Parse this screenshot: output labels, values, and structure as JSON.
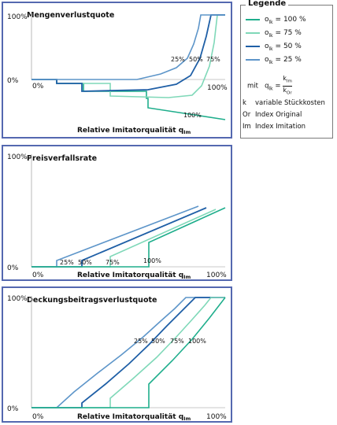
{
  "colors": {
    "c100": "#1fae8c",
    "c75": "#7fd8b8",
    "c50": "#1f5fa6",
    "c25": "#5d95c9",
    "frame": "#5468b0"
  },
  "legend": {
    "title": "Legende",
    "entries": [
      {
        "label": "o",
        "sub": "lk",
        "value": "=   100 %",
        "color": "#1fae8c"
      },
      {
        "label": "o",
        "sub": "lk",
        "value": "=     75 %",
        "color": "#7fd8b8"
      },
      {
        "label": "o",
        "sub": "lk",
        "value": "=     50 %",
        "color": "#1f5fa6"
      },
      {
        "label": "o",
        "sub": "lk",
        "value": "=     25 %",
        "color": "#5d95c9"
      }
    ],
    "formula_prefix": "mit",
    "formula_lhs": "q",
    "formula_lhs_sub": "lk",
    "formula_num": "k",
    "formula_num_sub": "Im",
    "formula_den": "k",
    "formula_den_sub": "Or",
    "abbreviations": [
      {
        "key": "k",
        "text": "variable Stückkosten"
      },
      {
        "key": "Or",
        "text": "Index Original"
      },
      {
        "key": "Im",
        "text": "Index Imitation"
      }
    ]
  },
  "panels": [
    {
      "title": "Mengenverlustquote",
      "y_top": "100%",
      "y_zero": "0%",
      "x_left": "0%",
      "x_right": "100%",
      "xlabel": "Relative Imitatorqualität q",
      "xlabel_sub": "Im",
      "curve_labels": [
        "25%",
        "50%",
        "75%",
        "100%"
      ]
    },
    {
      "title": "Preisverfallsrate",
      "y_top": "100%",
      "y_zero": "0%",
      "x_left": "0%",
      "x_right": "100%",
      "xlabel": "Relative Imitatorqualität q",
      "xlabel_sub": "Im",
      "curve_labels": [
        "25%",
        "50%",
        "75%",
        "100%"
      ]
    },
    {
      "title": "Deckungsbeitragsverlustquote",
      "y_top": "100%",
      "y_zero": "0%",
      "x_left": "0%",
      "x_right": "100%",
      "xlabel": "Relative Imitatorqualität q",
      "xlabel_sub": "Im",
      "curve_labels": [
        "25%",
        "50%",
        "75%",
        "100%"
      ]
    }
  ]
}
